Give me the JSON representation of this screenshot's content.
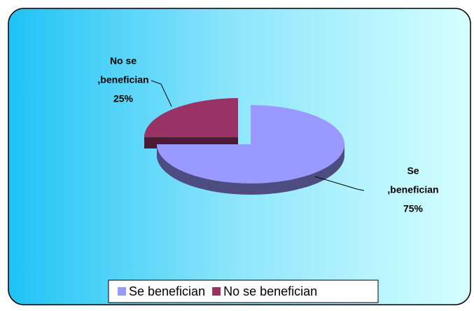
{
  "chart_data": {
    "type": "pie",
    "categories": [
      "Se benefician",
      "No se benefician"
    ],
    "values": [
      75,
      25
    ],
    "value_labels": [
      "75%",
      "25%"
    ],
    "label_names": [
      [
        "Se",
        ",benefician"
      ],
      [
        "No se",
        ",benefician"
      ]
    ],
    "colors": [
      "#9999ff",
      "#993366"
    ],
    "legend": "bottom"
  }
}
